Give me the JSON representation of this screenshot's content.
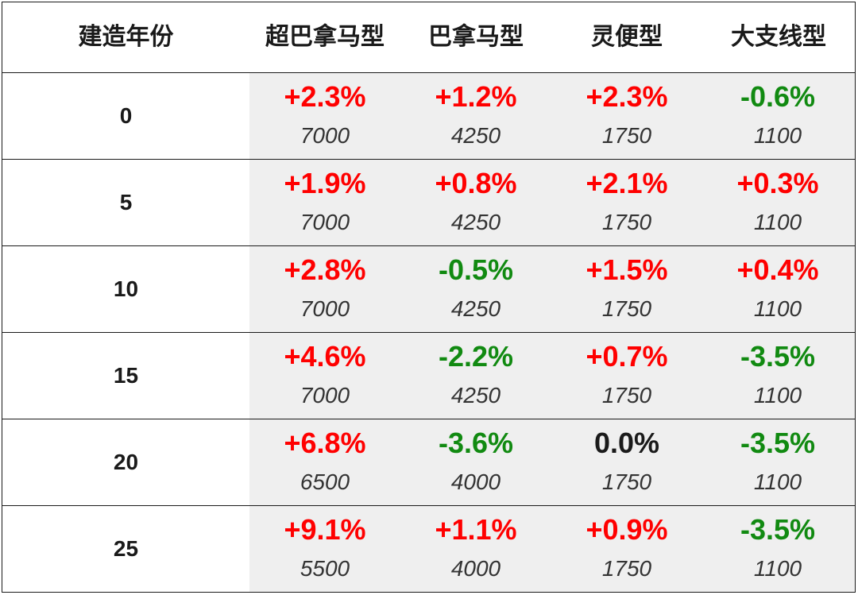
{
  "colors": {
    "positive": "#ff0000",
    "negative": "#118a11",
    "zero": "#1a1a1a"
  },
  "chart_data": {
    "type": "table",
    "columns": [
      "建造年份",
      "超巴拿马型",
      "巴拿马型",
      "灵便型",
      "大支线型"
    ],
    "rows": [
      {
        "year": "0",
        "cells": [
          {
            "pct": "+2.3%",
            "price": "7000"
          },
          {
            "pct": "+1.2%",
            "price": "4250"
          },
          {
            "pct": "+2.3%",
            "price": "1750"
          },
          {
            "pct": "-0.6%",
            "price": "1100"
          }
        ]
      },
      {
        "year": "5",
        "cells": [
          {
            "pct": "+1.9%",
            "price": "7000"
          },
          {
            "pct": "+0.8%",
            "price": "4250"
          },
          {
            "pct": "+2.1%",
            "price": "1750"
          },
          {
            "pct": "+0.3%",
            "price": "1100"
          }
        ]
      },
      {
        "year": "10",
        "cells": [
          {
            "pct": "+2.8%",
            "price": "7000"
          },
          {
            "pct": "-0.5%",
            "price": "4250"
          },
          {
            "pct": "+1.5%",
            "price": "1750"
          },
          {
            "pct": "+0.4%",
            "price": "1100"
          }
        ]
      },
      {
        "year": "15",
        "cells": [
          {
            "pct": "+4.6%",
            "price": "7000"
          },
          {
            "pct": "-2.2%",
            "price": "4250"
          },
          {
            "pct": "+0.7%",
            "price": "1750"
          },
          {
            "pct": "-3.5%",
            "price": "1100"
          }
        ]
      },
      {
        "year": "20",
        "cells": [
          {
            "pct": "+6.8%",
            "price": "6500"
          },
          {
            "pct": "-3.6%",
            "price": "4000"
          },
          {
            "pct": "0.0%",
            "price": "1750"
          },
          {
            "pct": "-3.5%",
            "price": "1100"
          }
        ]
      },
      {
        "year": "25",
        "cells": [
          {
            "pct": "+9.1%",
            "price": "5500"
          },
          {
            "pct": "+1.1%",
            "price": "4000"
          },
          {
            "pct": "+0.9%",
            "price": "1750"
          },
          {
            "pct": "-3.5%",
            "price": "1100"
          }
        ]
      }
    ]
  }
}
